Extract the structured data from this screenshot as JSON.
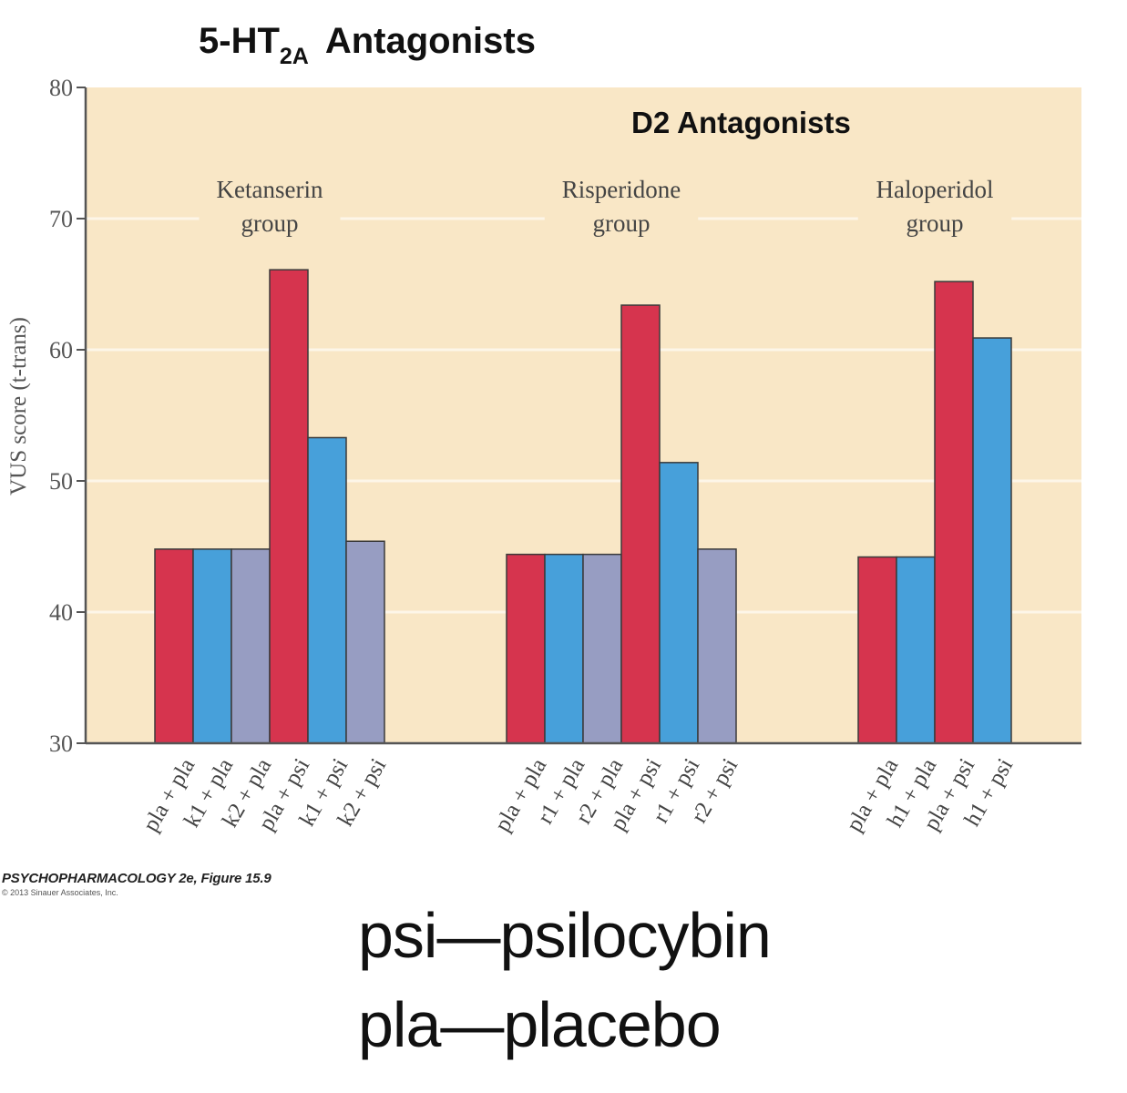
{
  "title": {
    "main": "5-HT",
    "subscript": "2A",
    "rest": "Antagonists"
  },
  "subtitle": "D2 Antagonists",
  "credit": {
    "line1": "PSYCHOPHARMACOLOGY 2e, Figure 15.9",
    "line2": "© 2013 Sinauer Associates, Inc."
  },
  "legend_notes": {
    "psi": "psi—psilocybin",
    "pla": "pla—placebo"
  },
  "colors": {
    "plot_background": "#f9e7c6",
    "gridline": "#fdf6e8",
    "red": "#d6344e",
    "blue": "#47a0da",
    "lavender": "#979dc2",
    "bar_stroke": "#3a3a3a",
    "axis": "#555555"
  },
  "chart_data": {
    "type": "bar",
    "ylabel": "VUS score (t-trans)",
    "ylim": [
      30,
      80
    ],
    "yticks": [
      30,
      40,
      50,
      60,
      70,
      80
    ],
    "grid": "horizontal",
    "groups": [
      {
        "name_line1": "Ketanserin",
        "name_line2": "group",
        "categories": [
          "pla + pla",
          "k1 + pla",
          "k2 + pla",
          "pla + psi",
          "k1 + psi",
          "k2 + psi"
        ],
        "values": [
          44.8,
          44.8,
          44.8,
          66.1,
          53.3,
          45.4
        ],
        "colors": [
          "red",
          "blue",
          "lavender",
          "red",
          "blue",
          "lavender"
        ]
      },
      {
        "name_line1": "Risperidone",
        "name_line2": "group",
        "categories": [
          "pla + pla",
          "r1 + pla",
          "r2 + pla",
          "pla + psi",
          "r1 + psi",
          "r2 + psi"
        ],
        "values": [
          44.4,
          44.4,
          44.4,
          63.4,
          51.4,
          44.8
        ],
        "colors": [
          "red",
          "blue",
          "lavender",
          "red",
          "blue",
          "lavender"
        ]
      },
      {
        "name_line1": "Haloperidol",
        "name_line2": "group",
        "categories": [
          "pla + pla",
          "h1 + pla",
          "pla + psi",
          "h1 + psi"
        ],
        "values": [
          44.2,
          44.2,
          65.2,
          60.9
        ],
        "colors": [
          "red",
          "blue",
          "red",
          "blue"
        ]
      }
    ]
  }
}
